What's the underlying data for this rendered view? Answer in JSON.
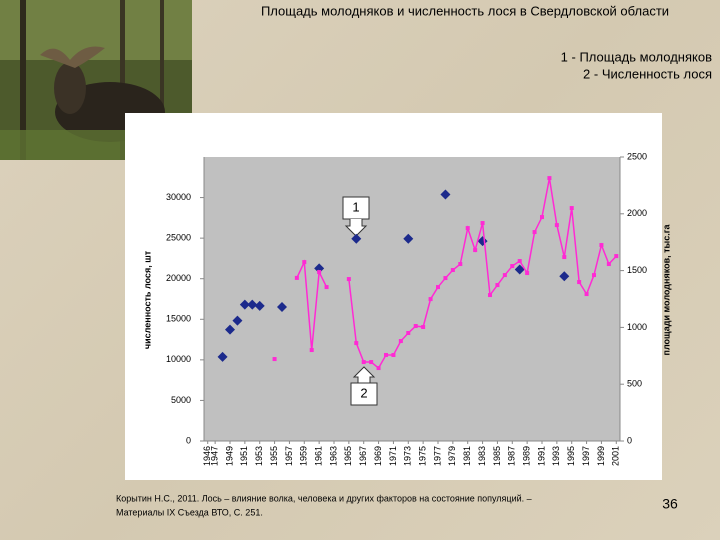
{
  "chart_data": {
    "type": "line",
    "title": "Площадь молодняков и численность лося в Свердловской области",
    "ylabel": "численность лося, шт",
    "y2label": "площади молодняков, тыс.га",
    "annotations": [
      "1",
      "2"
    ],
    "xlim": [
      1945.5,
      2001.5
    ],
    "xticks": [
      1946,
      1947,
      1949,
      1951,
      1953,
      1955,
      1957,
      1959,
      1961,
      1963,
      1965,
      1967,
      1969,
      1971,
      1973,
      1975,
      1977,
      1979,
      1981,
      1983,
      1985,
      1987,
      1989,
      1991,
      1993,
      1995,
      1997,
      1999,
      2001
    ],
    "ylim": [
      0,
      35000
    ],
    "yticks": [
      0,
      5000,
      10000,
      15000,
      20000,
      25000,
      30000
    ],
    "y2lim": [
      0,
      2500
    ],
    "y2ticks": [
      0,
      500,
      1000,
      1500,
      2000,
      2500
    ],
    "grid": false,
    "series": [
      {
        "name": "1 - Площадь молодняков",
        "type": "scatter",
        "axis": "y2",
        "color": "#1c2a8c",
        "x": [
          1948,
          1949,
          1950,
          1951,
          1952,
          1953,
          1956,
          1961,
          1966,
          1973,
          1978,
          1983,
          1988,
          1994
        ],
        "values": [
          740,
          980,
          1060,
          1200,
          1200,
          1190,
          1180,
          1520,
          1780,
          1780,
          2170,
          1760,
          1510,
          1450
        ]
      },
      {
        "name": "2 - Численность лося",
        "type": "line",
        "color": "#ff2ad4",
        "x": [
          1955,
          1956,
          1957,
          1958,
          1959,
          1960,
          1961,
          1962,
          1963,
          1964,
          1965,
          1966,
          1967,
          1968,
          1969,
          1970,
          1971,
          1972,
          1973,
          1974,
          1975,
          1976,
          1977,
          1978,
          1979,
          1980,
          1981,
          1982,
          1983,
          1984,
          1985,
          1986,
          1987,
          1988,
          1989,
          1990,
          1991,
          1992,
          1993,
          1994,
          1995,
          1996,
          1997,
          1998,
          1999,
          2000,
          2001
        ],
        "values": [
          10100,
          null,
          null,
          20100,
          22050,
          11210,
          20820,
          18970,
          null,
          null,
          19960,
          12070,
          9730,
          9730,
          8990,
          10600,
          10600,
          12320,
          13310,
          14170,
          14050,
          17490,
          18970,
          20080,
          21070,
          21810,
          26240,
          23530,
          26860,
          17990,
          19220,
          20450,
          21560,
          22180,
          20700,
          25750,
          27600,
          32400,
          26610,
          22670,
          28710,
          19590,
          18110,
          20450,
          24150,
          21810,
          22790
        ]
      }
    ]
  },
  "citation": [
    "Корытин Н.С., 2011. Лось – влияние волка, человека и других факторов на состояние популяций. –",
    "Материалы IX Съезда ВТО, С. 251."
  ],
  "slide_number": 36
}
